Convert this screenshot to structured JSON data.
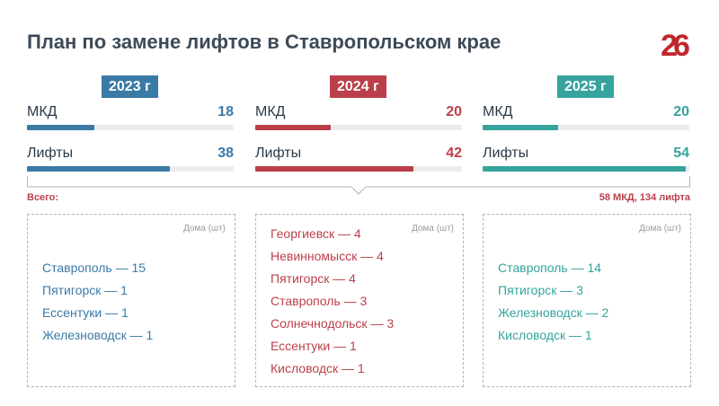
{
  "title": "План по замене лифтов в Ставропольском крае",
  "logo_text": "26",
  "colors": {
    "2023": "#3a7aa5",
    "2024": "#bb3f4a",
    "2025": "#36a39d",
    "text": "#2b3a48"
  },
  "chart_data": {
    "type": "bar",
    "title": "План по замене лифтов в Ставропольском крае",
    "categories": [
      "МКД",
      "Лифты"
    ],
    "xlim": [
      0,
      55
    ],
    "series": [
      {
        "name": "2023 г",
        "values": [
          18,
          38
        ]
      },
      {
        "name": "2024 г",
        "values": [
          20,
          42
        ]
      },
      {
        "name": "2025 г",
        "values": [
          20,
          54
        ]
      }
    ]
  },
  "years": [
    {
      "label": "2023 г",
      "metrics": [
        {
          "label": "МКД",
          "value": "18"
        },
        {
          "label": "Лифты",
          "value": "38"
        }
      ]
    },
    {
      "label": "2024 г",
      "metrics": [
        {
          "label": "МКД",
          "value": "20"
        },
        {
          "label": "Лифты",
          "value": "42"
        }
      ]
    },
    {
      "label": "2025 г",
      "metrics": [
        {
          "label": "МКД",
          "value": "20"
        },
        {
          "label": "Лифты",
          "value": "54"
        }
      ]
    }
  ],
  "total": {
    "label": "Всего:",
    "value": "58 МКД, 134 лифта"
  },
  "boxes": [
    {
      "unit": "Дома (шт)",
      "cities": [
        "Ставрополь — 15",
        "Пятигорск — 1",
        "Ессентуки — 1",
        "Железноводск — 1"
      ]
    },
    {
      "unit": "Дома (шт)",
      "cities": [
        "Георгиевск — 4",
        "Невинномысск — 4",
        "Пятигорск — 4",
        "Ставрополь — 3",
        "Солнечнодольск — 3",
        "Ессентуки — 1",
        "Кисловодск — 1"
      ]
    },
    {
      "unit": "Дома (шт)",
      "cities": [
        "Ставрополь — 14",
        "Пятигорск — 3",
        "Железноводск — 2",
        "Кисловодск — 1"
      ]
    }
  ]
}
